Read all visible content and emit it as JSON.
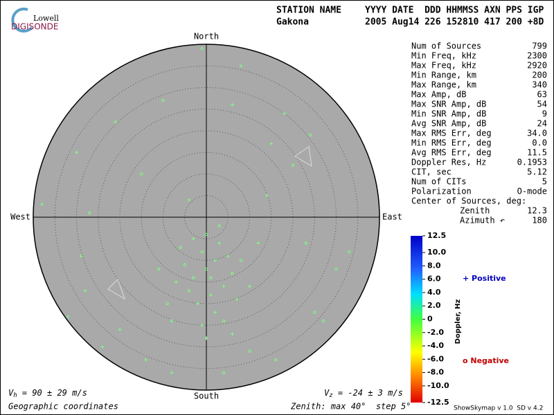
{
  "chart_data": {
    "type": "skymap",
    "logo": {
      "top": "Lowell",
      "bottom": "DIGISONDE"
    },
    "header": {
      "labels": "STATION NAME",
      "labels2": "YYYY DATE  DDD HHMMSS AXN PPS IGP",
      "station": "Gakona",
      "values": "2005 Aug14 226 152810 417 200 +8D"
    },
    "directions": {
      "north": "North",
      "south": "South",
      "east": "East",
      "west": "West"
    },
    "zenith_max": 40,
    "ring_step": 5,
    "stats": [
      [
        "Num of Sources",
        "799"
      ],
      [
        "Min Freq, kHz",
        "2300"
      ],
      [
        "Max Freq, kHz",
        "2920"
      ],
      [
        "Min Range, km",
        "200"
      ],
      [
        "Max Range, km",
        "340"
      ],
      [
        "Max Amp, dB",
        "63"
      ],
      [
        "Max SNR Amp, dB",
        "54"
      ],
      [
        "Min SNR Amp, dB",
        "9"
      ],
      [
        "Avg SNR Amp, dB",
        "24"
      ],
      [
        "Max RMS Err, deg",
        "34.0"
      ],
      [
        "Min RMS Err, deg",
        "0.0"
      ],
      [
        "Avg RMS Err, deg",
        "11.5"
      ],
      [
        "Doppler Res, Hz",
        "0.1953"
      ],
      [
        "CIT, sec",
        "5.12"
      ],
      [
        "Num of CITs",
        "5"
      ],
      [
        "Polarization",
        "O-mode"
      ]
    ],
    "center_title": "Center of Sources, deg:",
    "center": [
      [
        "Zenith",
        "12.3"
      ],
      [
        "Azimuth ↶",
        "180"
      ]
    ],
    "colorbar": {
      "label": "Doppler, Hz",
      "lim": [
        -12.5,
        12.5
      ],
      "ticks": [
        12.5,
        {
          "value": 10,
          "label": "10.0"
        },
        {
          "value": 8,
          "label": "8.0"
        },
        {
          "value": 6,
          "label": "6.0"
        },
        {
          "value": 4,
          "label": "4.0"
        },
        {
          "value": 2,
          "label": "2.0"
        },
        0,
        {
          "value": -2,
          "label": "-2.0"
        },
        {
          "value": -4,
          "label": "-4.0"
        },
        {
          "value": -6,
          "label": "-6.0"
        },
        {
          "value": -8,
          "label": "-8.0"
        },
        {
          "value": -10,
          "label": "-10.0"
        },
        -12.5
      ]
    },
    "legend": {
      "positive": "+ Positive",
      "negative": "o Negative"
    },
    "vh": {
      "symbol": "V",
      "sub": "h",
      "text": " = 90 ± 29 m/s"
    },
    "vz": {
      "symbol": "V",
      "sub": "z",
      "text": " = -24 ± 3 m/s"
    },
    "coords": "Geographic coordinates",
    "zenith_note": "Zenith: max 40°  step 5°",
    "version": "ShowSkymap v 1.0  SD v 4.2",
    "point_color": "#7dff7d",
    "sources": {
      "x": [
        0,
        2,
        -3,
        4,
        -1,
        1,
        -5,
        3,
        6,
        -2,
        0,
        5,
        -4,
        2,
        -6,
        7,
        1,
        -1,
        4,
        -7,
        8,
        -3,
        3,
        0,
        -9,
        10,
        -8,
        6,
        -11,
        12,
        -1,
        8,
        -10,
        6,
        -21,
        18,
        24,
        -30,
        20,
        -38,
        -27,
        14,
        23,
        -29,
        30,
        -28,
        25,
        -32,
        27,
        -20,
        10,
        -14,
        4,
        -8,
        16,
        -24,
        33,
        15,
        -15,
        -4
      ],
      "y": [
        -12,
        -10,
        -14,
        -16,
        -8,
        -18,
        -11,
        -6,
        -13,
        -20,
        -4,
        -9,
        -17,
        -22,
        -7,
        -19,
        -14,
        -25,
        -24,
        -15,
        -10,
        -5,
        -2,
        -28,
        -20,
        -16,
        -24,
        -27,
        -12,
        -6,
        39,
        35,
        27,
        26,
        22,
        24,
        19,
        15,
        12,
        3,
        1,
        5,
        -6,
        -9,
        -12,
        -17,
        -22,
        -23,
        -24,
        -26,
        -31,
        -33,
        -36,
        -36,
        -33,
        -30,
        -8,
        17,
        10,
        4
      ]
    }
  }
}
